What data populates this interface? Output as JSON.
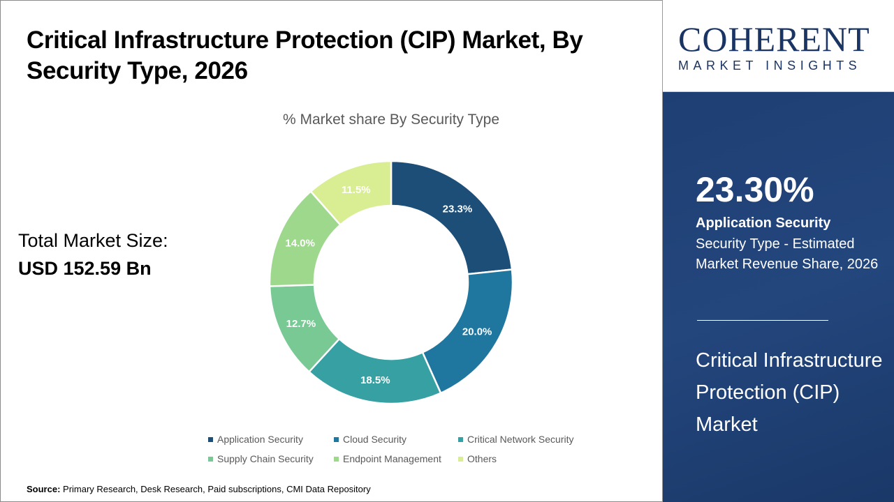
{
  "header": {
    "title": "Critical Infrastructure Protection (CIP) Market, By Security Type, 2026"
  },
  "total": {
    "label": "Total Market Size:",
    "value": "USD 152.59 Bn"
  },
  "source": {
    "label": "Source:",
    "text": " Primary Research, Desk Research, Paid subscriptions, CMI Data Repository"
  },
  "logo": {
    "big": "COHERENT",
    "small": "MARKET INSIGHTS"
  },
  "panel": {
    "pct": "23.30%",
    "segment": "Application Security",
    "desc": "Security Type - Estimated Market Revenue Share, 2026",
    "market": "Critical Infrastructure Protection (CIP) Market"
  },
  "chart_data": {
    "type": "pie",
    "donut": true,
    "title": "% Market share By Security Type",
    "legend_position": "bottom",
    "categories": [
      "Application Security",
      "Cloud Security",
      "Critical Network Security",
      "Supply Chain Security",
      "Endpoint Management",
      "Others"
    ],
    "values": [
      23.3,
      20.0,
      18.5,
      12.7,
      14.0,
      11.5
    ],
    "labels": [
      "23.3%",
      "20.0%",
      "18.5%",
      "12.7%",
      "14.0%",
      "11.5%"
    ],
    "colors": [
      "#1c4e78",
      "#1f77a0",
      "#36a0a3",
      "#78c994",
      "#9dd88c",
      "#d9ee93"
    ]
  }
}
